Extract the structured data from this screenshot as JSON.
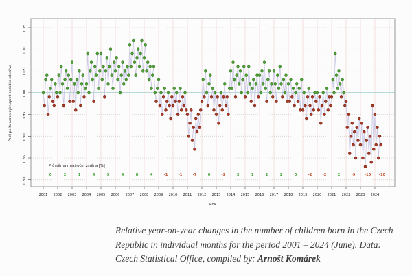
{
  "figure": {
    "caption": {
      "line1": "Relative year-on-year changes in the number of children born in the Czech",
      "line2": "Republic in individual months for the period 2001 – 2024 (June). Data:",
      "line3_prefix": "Czech Statistical Office, compiled by: ",
      "author": "Arnošt Komárek"
    }
  },
  "chart_data": {
    "type": "scatter",
    "title": "",
    "xlabel": "Rok",
    "ylabel": "Podíl počtu narozených oproti období o rok dříve",
    "ylim": [
      0.8,
      1.17
    ],
    "yticks": [
      0.8,
      0.85,
      0.9,
      0.95,
      1.0,
      1.05,
      1.1,
      1.15
    ],
    "reference_line": 1.0,
    "grid": true,
    "legend_position": "none",
    "years": [
      2001,
      2002,
      2003,
      2004,
      2005,
      2006,
      2007,
      2008,
      2009,
      2010,
      2011,
      2012,
      2013,
      2014,
      2015,
      2016,
      2017,
      2018,
      2019,
      2020,
      2021,
      2022,
      2023,
      2024
    ],
    "avg_change_label": "Průměrná meziroční změna [%]",
    "avg_change_pct": [
      0,
      2,
      1,
      4,
      5,
      4,
      8,
      4,
      -1,
      -1,
      -7,
      0,
      -2,
      3,
      1,
      2,
      2,
      0,
      -2,
      -2,
      2,
      -9,
      -10,
      -10
    ],
    "monthly_ratio": {
      "start_year": 2001,
      "start_month": 1,
      "end_year": 2024,
      "end_month": 6,
      "values": [
        1.0,
        0.97,
        1.03,
        1.04,
        0.95,
        0.99,
        1.01,
        1.03,
        0.98,
        0.97,
        1.02,
        1.0,
        0.99,
        1.04,
        1.0,
        1.06,
        1.02,
        0.97,
        1.03,
        1.05,
        1.01,
        1.04,
        0.98,
        1.03,
        1.07,
        0.98,
        1.02,
        0.96,
        1.03,
        1.0,
        1.05,
        0.97,
        1.02,
        1.04,
        0.99,
        1.01,
        1.02,
        1.09,
        1.0,
        1.05,
        1.07,
        1.03,
        0.98,
        1.06,
        1.04,
        1.09,
        1.01,
        1.05,
        1.09,
        1.03,
        1.06,
        0.99,
        1.05,
        1.08,
        1.02,
        1.06,
        1.1,
        1.04,
        1.01,
        1.07,
        1.05,
        1.08,
        1.03,
        1.06,
        1.0,
        1.04,
        1.07,
        1.02,
        1.05,
        1.03,
        1.06,
        1.04,
        1.11,
        1.06,
        1.09,
        1.12,
        1.07,
        1.04,
        1.08,
        1.1,
        1.06,
        1.09,
        1.12,
        1.05,
        1.08,
        1.11,
        1.05,
        1.07,
        1.03,
        1.06,
        1.01,
        1.04,
        1.06,
        1.0,
        0.98,
        1.01,
        1.03,
        0.97,
        1.0,
        0.95,
        0.99,
        1.01,
        0.96,
        0.98,
        1.0,
        0.97,
        0.94,
        0.99,
        0.97,
        1.01,
        0.98,
        1.0,
        0.95,
        0.98,
        1.01,
        0.96,
        0.99,
        0.97,
        1.0,
        0.96,
        0.95,
        0.9,
        0.93,
        0.96,
        0.89,
        0.92,
        0.87,
        0.94,
        0.91,
        0.95,
        0.92,
        0.96,
        0.98,
        1.03,
        0.99,
        1.05,
        1.0,
        0.97,
        1.02,
        1.04,
        0.99,
        1.01,
        0.96,
        1.0,
        0.95,
        0.99,
        0.93,
        0.97,
        1.0,
        0.96,
        0.99,
        1.02,
        0.97,
        0.99,
        0.95,
        1.01,
        1.05,
        1.01,
        1.07,
        1.03,
        0.99,
        1.04,
        1.06,
        1.02,
        1.05,
        1.0,
        1.03,
        1.06,
        0.99,
        1.04,
        1.0,
        1.06,
        1.02,
        0.98,
        1.01,
        1.03,
        0.97,
        1.02,
        1.04,
        0.99,
        1.04,
        1.0,
        1.05,
        1.02,
        1.07,
        1.01,
        0.98,
        1.03,
        1.05,
        1.0,
        1.02,
        0.99,
        1.05,
        1.02,
        0.98,
        1.04,
        1.01,
        1.06,
        1.02,
        0.99,
        1.03,
        1.0,
        1.04,
        0.98,
        1.02,
        0.98,
        1.03,
        0.99,
        1.01,
        0.97,
        1.0,
        1.02,
        0.98,
        1.01,
        0.96,
        1.03,
        0.96,
        1.0,
        0.97,
        0.94,
        0.99,
        1.01,
        0.97,
        0.95,
        0.99,
        0.96,
        1.0,
        0.98,
        1.0,
        0.96,
        0.99,
        0.93,
        0.97,
        1.0,
        0.95,
        0.98,
        1.01,
        0.96,
        0.99,
        0.97,
        0.99,
        1.03,
        1.0,
        1.09,
        1.04,
        1.01,
        1.05,
        1.02,
        0.99,
        1.03,
        1.0,
        0.97,
        0.98,
        0.92,
        0.95,
        0.86,
        0.9,
        0.93,
        0.88,
        0.91,
        0.85,
        0.92,
        0.89,
        0.94,
        0.88,
        0.93,
        0.85,
        0.91,
        0.83,
        0.89,
        0.92,
        0.86,
        0.9,
        0.84,
        0.97,
        0.87,
        0.95,
        0.88,
        0.92,
        0.85,
        0.9,
        0.88
      ]
    },
    "colors": {
      "point_up": "#55a13c",
      "point_up_border": "#357f22",
      "point_down": "#a93c28",
      "point_down_border": "#7e2616",
      "line": "#c9c7e4",
      "reference": "#8ec7c3",
      "vgrid": "#f2dede",
      "hgrid": "#d8d2c8",
      "label_up": "#46a33b",
      "label_down": "#c0502f",
      "axis_text": "#222222",
      "box_border": "#999999"
    }
  }
}
